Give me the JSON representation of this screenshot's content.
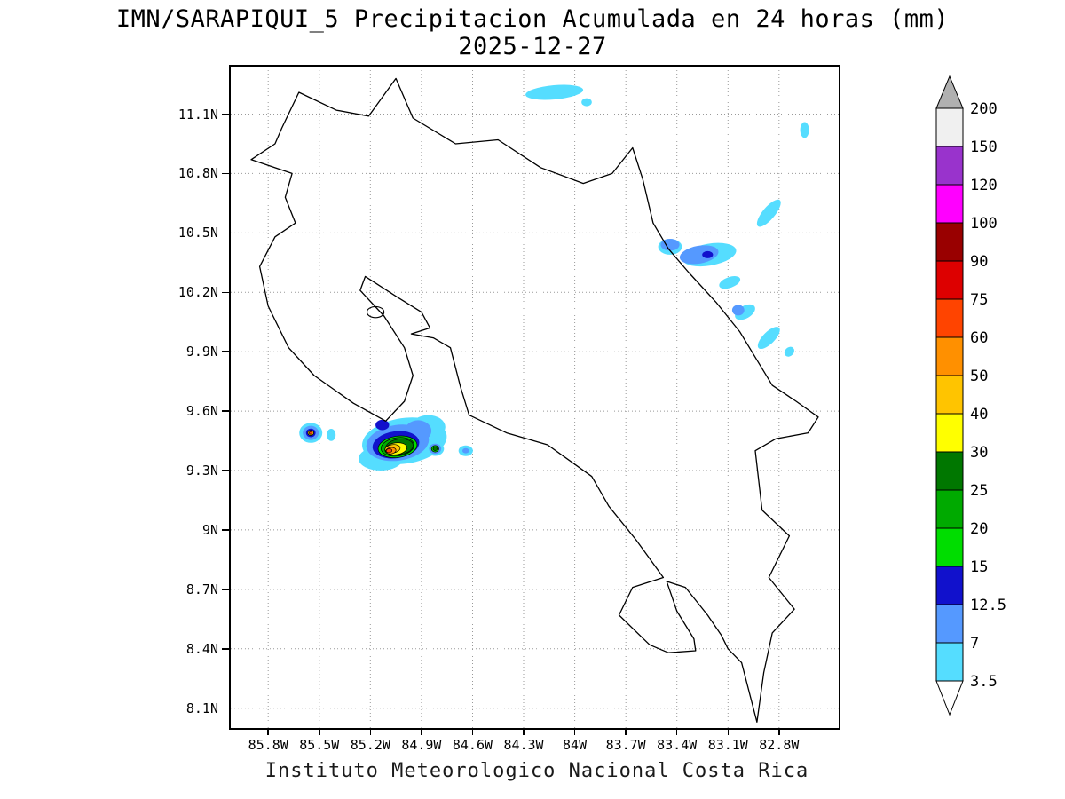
{
  "title": "IMN/SARAPIQUI_5 Precipitacion Acumulada en 24 horas (mm)",
  "subtitle": "2025-12-27",
  "footer": "Instituto Meteorologico Nacional Costa Rica",
  "chart_data": {
    "type": "heatmap",
    "source": "IMN/SARAPIQUI_5",
    "variable": "Precipitacion Acumulada en 24 horas (mm)",
    "date": "2025-12-27",
    "region": "Costa Rica",
    "extent": {
      "lon_min": -86.02,
      "lon_max": -82.45,
      "lat_min": 8.0,
      "lat_max": 11.34
    },
    "grid": "dotted",
    "xticks": [
      {
        "label": "85.8W",
        "lon": -85.8
      },
      {
        "label": "85.5W",
        "lon": -85.5
      },
      {
        "label": "85.2W",
        "lon": -85.2
      },
      {
        "label": "84.9W",
        "lon": -84.9
      },
      {
        "label": "84.6W",
        "lon": -84.6
      },
      {
        "label": "84.3W",
        "lon": -84.3
      },
      {
        "label": "84W",
        "lon": -84.0
      },
      {
        "label": "83.7W",
        "lon": -83.7
      },
      {
        "label": "83.4W",
        "lon": -83.4
      },
      {
        "label": "83.1W",
        "lon": -83.1
      },
      {
        "label": "82.8W",
        "lon": -82.8
      }
    ],
    "yticks": [
      {
        "label": "11.1N",
        "lat": 11.1
      },
      {
        "label": "10.8N",
        "lat": 10.8
      },
      {
        "label": "10.5N",
        "lat": 10.5
      },
      {
        "label": "10.2N",
        "lat": 10.2
      },
      {
        "label": "9.9N",
        "lat": 9.9
      },
      {
        "label": "9.6N",
        "lat": 9.6
      },
      {
        "label": "9.3N",
        "lat": 9.3
      },
      {
        "label": "9N",
        "lat": 9.0
      },
      {
        "label": "8.7N",
        "lat": 8.7
      },
      {
        "label": "8.4N",
        "lat": 8.4
      },
      {
        "label": "8.1N",
        "lat": 8.1
      }
    ],
    "colorbar": {
      "labels_top_to_bottom": [
        "200",
        "150",
        "120",
        "100",
        "90",
        "75",
        "60",
        "50",
        "40",
        "30",
        "25",
        "20",
        "15",
        "12.5",
        "7",
        "3.5"
      ],
      "band_colors_top_to_bottom": [
        "#f0f0f0",
        "#9933cc",
        "#ff00ff",
        "#990000",
        "#dd0000",
        "#ff4400",
        "#ff9000",
        "#ffc400",
        "#ffff00",
        "#007700",
        "#00aa00",
        "#00dd00",
        "#1111cc",
        "#5599ff",
        "#55ddff"
      ],
      "over_color": "#b0b0b0",
      "under_color": "#ffffff"
    },
    "palette": {
      "3.5": "#55ddff",
      "7": "#5599ff",
      "12.5": "#1111cc",
      "15": "#00dd00",
      "20": "#00aa00",
      "25": "#007700",
      "30": "#ffff00",
      "40": "#ffc400",
      "50": "#ff9000",
      "60": "#ff4400",
      "75": "#dd0000",
      "90": "#990000",
      "100": "#ff00ff",
      "120": "#9933cc",
      "150": "#f0f0f0",
      "200": "#b0b0b0"
    },
    "map_outline": [
      [
        -85.72,
        11.03
      ],
      [
        -85.62,
        11.21
      ],
      [
        -85.4,
        11.12
      ],
      [
        -85.21,
        11.09
      ],
      [
        -85.05,
        11.28
      ],
      [
        -84.95,
        11.08
      ],
      [
        -84.7,
        10.95
      ],
      [
        -84.45,
        10.97
      ],
      [
        -84.2,
        10.83
      ],
      [
        -83.95,
        10.75
      ],
      [
        -83.78,
        10.8
      ],
      [
        -83.66,
        10.93
      ],
      [
        -83.6,
        10.77
      ],
      [
        -83.54,
        10.55
      ],
      [
        -83.45,
        10.42
      ],
      [
        -83.33,
        10.3
      ],
      [
        -83.17,
        10.15
      ],
      [
        -83.03,
        10.0
      ],
      [
        -82.84,
        9.73
      ],
      [
        -82.7,
        9.65
      ],
      [
        -82.57,
        9.57
      ],
      [
        -82.63,
        9.49
      ],
      [
        -82.82,
        9.46
      ],
      [
        -82.94,
        9.4
      ],
      [
        -82.9,
        9.1
      ],
      [
        -82.74,
        8.97
      ],
      [
        -82.86,
        8.76
      ],
      [
        -82.71,
        8.6
      ],
      [
        -82.84,
        8.48
      ],
      [
        -82.89,
        8.28
      ],
      [
        -82.93,
        8.03
      ],
      [
        -83.02,
        8.33
      ],
      [
        -83.1,
        8.4
      ],
      [
        -83.14,
        8.47
      ],
      [
        -83.22,
        8.57
      ],
      [
        -83.35,
        8.71
      ],
      [
        -83.46,
        8.74
      ],
      [
        -83.4,
        8.59
      ],
      [
        -83.3,
        8.45
      ],
      [
        -83.29,
        8.39
      ],
      [
        -83.45,
        8.38
      ],
      [
        -83.56,
        8.42
      ],
      [
        -83.74,
        8.57
      ],
      [
        -83.66,
        8.71
      ],
      [
        -83.48,
        8.76
      ],
      [
        -83.64,
        8.95
      ],
      [
        -83.8,
        9.12
      ],
      [
        -83.9,
        9.27
      ],
      [
        -84.16,
        9.43
      ],
      [
        -84.4,
        9.49
      ],
      [
        -84.62,
        9.58
      ],
      [
        -84.67,
        9.72
      ],
      [
        -84.73,
        9.92
      ],
      [
        -84.83,
        9.97
      ],
      [
        -84.96,
        9.99
      ],
      [
        -84.85,
        10.02
      ],
      [
        -84.9,
        10.1
      ],
      [
        -85.05,
        10.18
      ],
      [
        -85.23,
        10.28
      ],
      [
        -85.26,
        10.21
      ],
      [
        -85.12,
        10.08
      ],
      [
        -85.0,
        9.92
      ],
      [
        -84.95,
        9.78
      ],
      [
        -85.0,
        9.65
      ],
      [
        -85.11,
        9.55
      ],
      [
        -85.3,
        9.64
      ],
      [
        -85.53,
        9.78
      ],
      [
        -85.68,
        9.92
      ],
      [
        -85.8,
        10.13
      ],
      [
        -85.85,
        10.33
      ],
      [
        -85.76,
        10.48
      ],
      [
        -85.64,
        10.55
      ],
      [
        -85.7,
        10.68
      ],
      [
        -85.66,
        10.8
      ],
      [
        -85.9,
        10.87
      ],
      [
        -85.76,
        10.95
      ],
      [
        -85.72,
        11.03
      ]
    ],
    "islands": [
      {
        "name": "Isla Chira",
        "lon": -85.17,
        "lat": 10.1,
        "rx": 0.05,
        "ry": 0.028
      }
    ],
    "precip_blobs": [
      {
        "lon": -84.12,
        "lat": 11.21,
        "rx": 0.17,
        "ry": 0.036,
        "rot": -5,
        "level": "3.5"
      },
      {
        "lon": -83.93,
        "lat": 11.16,
        "rx": 0.03,
        "ry": 0.02,
        "rot": 0,
        "level": "3.5"
      },
      {
        "lon": -82.65,
        "lat": 11.02,
        "rx": 0.026,
        "ry": 0.04,
        "rot": 0,
        "level": "3.5"
      },
      {
        "lon": -82.86,
        "lat": 10.6,
        "rx": 0.1,
        "ry": 0.031,
        "rot": -50,
        "level": "3.5"
      },
      {
        "lon": -83.21,
        "lat": 10.39,
        "rx": 0.16,
        "ry": 0.055,
        "rot": -10,
        "level": "3.5"
      },
      {
        "lon": -83.44,
        "lat": 10.43,
        "rx": 0.07,
        "ry": 0.04,
        "rot": 0,
        "level": "3.5"
      },
      {
        "lon": -83.44,
        "lat": 10.44,
        "rx": 0.055,
        "ry": 0.03,
        "rot": 0,
        "level": "7"
      },
      {
        "lon": -83.27,
        "lat": 10.39,
        "rx": 0.115,
        "ry": 0.045,
        "rot": -10,
        "level": "7"
      },
      {
        "lon": -83.22,
        "lat": 10.39,
        "rx": 0.032,
        "ry": 0.018,
        "rot": 0,
        "level": "12.5"
      },
      {
        "lon": -83.09,
        "lat": 10.25,
        "rx": 0.065,
        "ry": 0.027,
        "rot": -20,
        "level": "3.5"
      },
      {
        "lon": -83.0,
        "lat": 10.1,
        "rx": 0.065,
        "ry": 0.032,
        "rot": -30,
        "level": "3.5"
      },
      {
        "lon": -83.04,
        "lat": 10.11,
        "rx": 0.036,
        "ry": 0.027,
        "rot": 0,
        "level": "7"
      },
      {
        "lon": -82.86,
        "lat": 9.97,
        "rx": 0.085,
        "ry": 0.03,
        "rot": -45,
        "level": "3.5"
      },
      {
        "lon": -82.74,
        "lat": 9.9,
        "rx": 0.032,
        "ry": 0.022,
        "rot": -45,
        "level": "3.5"
      },
      {
        "lon": -85.55,
        "lat": 9.49,
        "rx": 0.068,
        "ry": 0.05,
        "rot": 0,
        "level": "3.5"
      },
      {
        "lon": -85.55,
        "lat": 9.49,
        "rx": 0.047,
        "ry": 0.036,
        "rot": 0,
        "level": "7"
      },
      {
        "lon": -85.55,
        "lat": 9.49,
        "rx": 0.028,
        "ry": 0.022,
        "rot": 0,
        "level": "12.5"
      },
      {
        "lon": -85.55,
        "lat": 9.49,
        "rx": 0.017,
        "ry": 0.013,
        "rot": 0,
        "level": "40"
      },
      {
        "lon": -85.55,
        "lat": 9.49,
        "rx": 0.009,
        "ry": 0.007,
        "rot": 0,
        "level": "60"
      },
      {
        "lon": -85.43,
        "lat": 9.48,
        "rx": 0.026,
        "ry": 0.031,
        "rot": 0,
        "level": "3.5"
      },
      {
        "lon": -85.0,
        "lat": 9.45,
        "rx": 0.25,
        "ry": 0.115,
        "rot": -8,
        "level": "3.5"
      },
      {
        "lon": -85.14,
        "lat": 9.36,
        "rx": 0.13,
        "ry": 0.06,
        "rot": 0,
        "level": "3.5"
      },
      {
        "lon": -84.86,
        "lat": 9.52,
        "rx": 0.1,
        "ry": 0.06,
        "rot": 0,
        "level": "3.5"
      },
      {
        "lon": -85.04,
        "lat": 9.44,
        "rx": 0.185,
        "ry": 0.09,
        "rot": -8,
        "level": "7"
      },
      {
        "lon": -84.92,
        "lat": 9.5,
        "rx": 0.078,
        "ry": 0.054,
        "rot": 0,
        "level": "7"
      },
      {
        "lon": -85.05,
        "lat": 9.43,
        "rx": 0.138,
        "ry": 0.068,
        "rot": -8,
        "level": "12.5"
      },
      {
        "lon": -85.13,
        "lat": 9.53,
        "rx": 0.04,
        "ry": 0.026,
        "rot": 0,
        "level": "12.5"
      },
      {
        "lon": -85.04,
        "lat": 9.42,
        "rx": 0.115,
        "ry": 0.054,
        "rot": -8,
        "level": "15"
      },
      {
        "lon": -85.04,
        "lat": 9.42,
        "rx": 0.098,
        "ry": 0.046,
        "rot": -8,
        "level": "20"
      },
      {
        "lon": -85.03,
        "lat": 9.42,
        "rx": 0.082,
        "ry": 0.039,
        "rot": -8,
        "level": "25"
      },
      {
        "lon": -85.05,
        "lat": 9.41,
        "rx": 0.065,
        "ry": 0.03,
        "rot": -8,
        "level": "30"
      },
      {
        "lon": -85.07,
        "lat": 9.41,
        "rx": 0.045,
        "ry": 0.021,
        "rot": -8,
        "level": "40"
      },
      {
        "lon": -85.08,
        "lat": 9.4,
        "rx": 0.03,
        "ry": 0.016,
        "rot": -8,
        "level": "50"
      },
      {
        "lon": -85.09,
        "lat": 9.4,
        "rx": 0.017,
        "ry": 0.01,
        "rot": -8,
        "level": "60"
      },
      {
        "lon": -84.82,
        "lat": 9.41,
        "rx": 0.052,
        "ry": 0.036,
        "rot": 0,
        "level": "3.5"
      },
      {
        "lon": -84.82,
        "lat": 9.41,
        "rx": 0.036,
        "ry": 0.026,
        "rot": 0,
        "level": "7"
      },
      {
        "lon": -84.82,
        "lat": 9.41,
        "rx": 0.022,
        "ry": 0.016,
        "rot": 0,
        "level": "15"
      },
      {
        "lon": -84.82,
        "lat": 9.41,
        "rx": 0.012,
        "ry": 0.009,
        "rot": 0,
        "level": "25"
      },
      {
        "lon": -84.64,
        "lat": 9.4,
        "rx": 0.042,
        "ry": 0.027,
        "rot": 0,
        "level": "3.5"
      },
      {
        "lon": -84.64,
        "lat": 9.4,
        "rx": 0.02,
        "ry": 0.013,
        "rot": 0,
        "level": "7"
      }
    ]
  }
}
